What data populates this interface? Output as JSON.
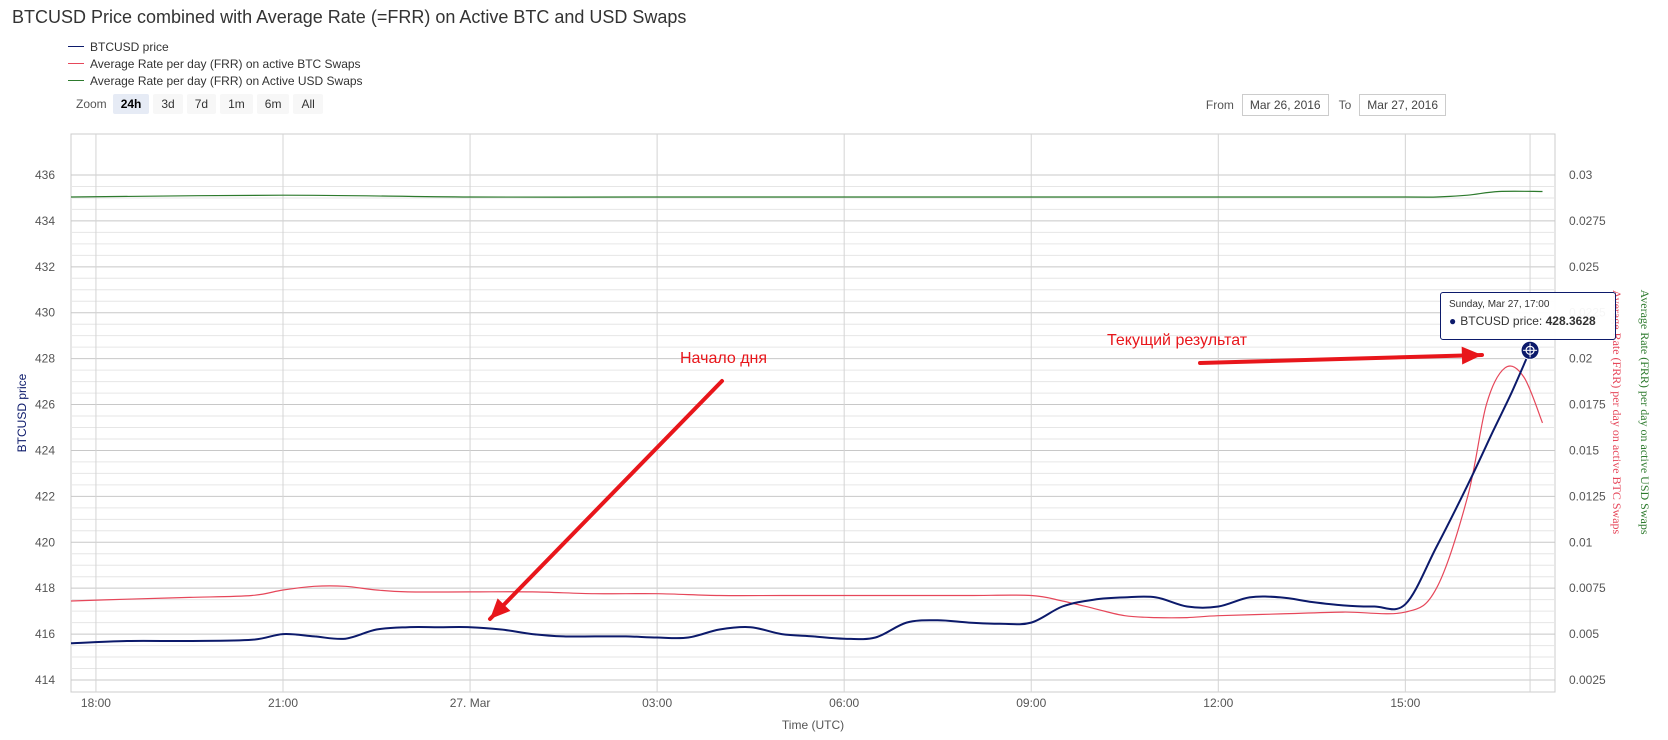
{
  "title": "BTCUSD Price combined with Average Rate (=FRR) on Active BTC and USD Swaps",
  "legend": [
    {
      "label": "BTCUSD price",
      "color": "#0c1a6b"
    },
    {
      "label": "Average Rate per day (FRR) on active BTC Swaps",
      "color": "#e6475a"
    },
    {
      "label": "Average Rate per day (FRR) on Active USD Swaps",
      "color": "#2d7a2d"
    }
  ],
  "zoom": {
    "label": "Zoom",
    "buttons": [
      "24h",
      "3d",
      "7d",
      "1m",
      "6m",
      "All"
    ],
    "active": "24h"
  },
  "range": {
    "from_label": "From",
    "from_value": "Mar 26, 2016",
    "to_label": "To",
    "to_value": "Mar 27, 2016"
  },
  "tooltip": {
    "date": "Sunday, Mar 27, 17:00",
    "series_label": "BTCUSD price:",
    "value": "428.3628"
  },
  "annotations": {
    "day_start": "Начало дня",
    "current_result": "Текущий результат"
  },
  "chart_data": {
    "type": "line",
    "x_label": "Time (UTC)",
    "x_ticks": [
      "18:00",
      "21:00",
      "27. Mar",
      "03:00",
      "06:00",
      "09:00",
      "12:00",
      "15:00"
    ],
    "x_tick_hours": [
      0,
      3,
      6,
      9,
      12,
      15,
      18,
      21
    ],
    "x_range_hours": [
      -0.4,
      23.4
    ],
    "y_left": {
      "label": "BTCUSD price",
      "range": [
        414,
        436
      ],
      "ticks": [
        414,
        416,
        418,
        420,
        422,
        424,
        426,
        428,
        430,
        432,
        434,
        436
      ]
    },
    "y_right": {
      "range": [
        0.0025,
        0.03
      ],
      "ticks": [
        "0.0025",
        "0.005",
        "0.0075",
        "0.01",
        "0.0125",
        "0.015",
        "0.0175",
        "0.02",
        "0.0225",
        "0.025",
        "0.0275",
        "0.03"
      ],
      "labels": [
        "Average Rate (FRR) per day on active BTC Swaps",
        "Average Rate (FRR) per day on active USD Swaps"
      ]
    },
    "series": [
      {
        "name": "BTCUSD price",
        "axis": "left",
        "color": "#0c1a6b",
        "x": [
          -0.4,
          0.5,
          1.5,
          2.5,
          3.0,
          3.5,
          4.0,
          4.5,
          5.0,
          5.5,
          6.0,
          6.5,
          7.0,
          7.5,
          8.0,
          8.5,
          9.0,
          9.5,
          10.0,
          10.5,
          11.0,
          11.5,
          12.0,
          12.5,
          13.0,
          13.5,
          14.0,
          14.5,
          15.0,
          15.5,
          16.0,
          16.5,
          17.0,
          17.5,
          18.0,
          18.5,
          19.0,
          19.5,
          20.0,
          20.5,
          21.0,
          21.5,
          22.0,
          22.4,
          22.7,
          23.0
        ],
        "y": [
          415.6,
          415.7,
          415.7,
          415.75,
          416.0,
          415.9,
          415.8,
          416.2,
          416.3,
          416.3,
          416.3,
          416.2,
          416.0,
          415.9,
          415.9,
          415.9,
          415.85,
          415.85,
          416.2,
          416.3,
          416.0,
          415.9,
          415.8,
          415.85,
          416.5,
          416.6,
          416.5,
          416.45,
          416.5,
          417.2,
          417.5,
          417.6,
          417.6,
          417.2,
          417.2,
          417.6,
          417.6,
          417.4,
          417.25,
          417.2,
          417.3,
          419.8,
          422.5,
          424.8,
          426.5,
          428.36
        ]
      },
      {
        "name": "Average Rate per day (FRR) on active BTC Swaps",
        "axis": "right",
        "color": "#e6475a",
        "x": [
          -0.4,
          0.5,
          1.5,
          2.5,
          3.0,
          3.5,
          4.0,
          4.5,
          5.0,
          6.0,
          7.0,
          8.0,
          9.0,
          10.0,
          11.0,
          12.0,
          13.0,
          14.0,
          15.0,
          15.5,
          16.0,
          16.5,
          17.0,
          17.5,
          18.0,
          19.0,
          20.0,
          21.0,
          21.5,
          22.0,
          22.3,
          22.6,
          22.9,
          23.2
        ],
        "y": [
          0.0068,
          0.0069,
          0.007,
          0.0071,
          0.0074,
          0.0076,
          0.0076,
          0.0074,
          0.0073,
          0.0073,
          0.0073,
          0.0072,
          0.0072,
          0.0071,
          0.0071,
          0.0071,
          0.0071,
          0.0071,
          0.0071,
          0.0068,
          0.0064,
          0.006,
          0.0059,
          0.0059,
          0.006,
          0.0061,
          0.0062,
          0.0062,
          0.0075,
          0.0125,
          0.0175,
          0.0195,
          0.019,
          0.0165
        ]
      },
      {
        "name": "Average Rate per day (FRR) on Active USD Swaps",
        "axis": "right",
        "color": "#2d7a2d",
        "x": [
          -0.4,
          3.0,
          6.0,
          9.0,
          12.0,
          15.0,
          18.0,
          21.0,
          21.5,
          22.0,
          22.5,
          23.2
        ],
        "y": [
          0.0288,
          0.0289,
          0.0288,
          0.0288,
          0.0288,
          0.0288,
          0.0288,
          0.0288,
          0.0288,
          0.0289,
          0.0291,
          0.0291
        ]
      }
    ],
    "highlight_point": {
      "series": "BTCUSD price",
      "x": 23.0,
      "y": 428.3628
    },
    "grid": true,
    "legend_position": "top-left"
  }
}
